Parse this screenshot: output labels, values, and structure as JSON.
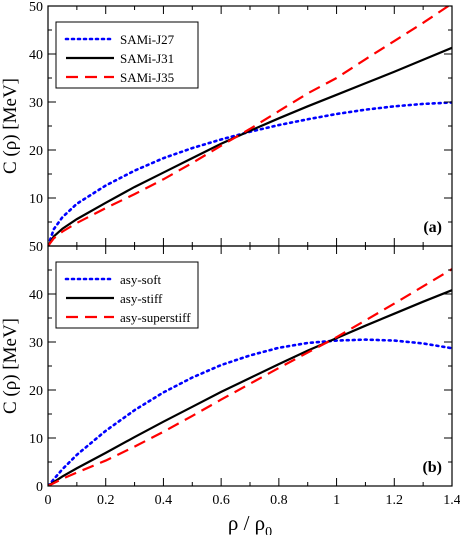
{
  "chart_data": [
    {
      "type": "line",
      "panel_label": "(a)",
      "ylabel": "C (ρ) [MeV]",
      "xlim": [
        0,
        1.4
      ],
      "ylim": [
        0,
        50
      ],
      "yticks": [
        "10",
        "20",
        "30",
        "40",
        "50"
      ],
      "grid": false,
      "legend_position": "top-left",
      "series": [
        {
          "name": "SAMi-J27",
          "color": "#0000ff",
          "style": "dotted",
          "x": [
            0,
            0.02,
            0.05,
            0.1,
            0.2,
            0.3,
            0.4,
            0.5,
            0.6,
            0.7,
            0.8,
            0.9,
            1.0,
            1.1,
            1.2,
            1.3,
            1.4
          ],
          "y": [
            0,
            3.5,
            6.0,
            8.8,
            12.6,
            15.7,
            18.3,
            20.4,
            22.2,
            23.8,
            25.2,
            26.4,
            27.5,
            28.4,
            29.1,
            29.6,
            29.9
          ]
        },
        {
          "name": "SAMi-J31",
          "color": "#000000",
          "style": "solid",
          "x": [
            0,
            0.02,
            0.05,
            0.1,
            0.2,
            0.3,
            0.4,
            0.5,
            0.6,
            0.7,
            0.8,
            0.9,
            1.0,
            1.1,
            1.2,
            1.3,
            1.4
          ],
          "y": [
            0,
            2.0,
            3.6,
            5.6,
            9.0,
            12.3,
            15.3,
            18.3,
            21.3,
            24.0,
            26.6,
            29.1,
            31.5,
            33.9,
            36.3,
            38.8,
            41.3
          ]
        },
        {
          "name": "SAMi-J35",
          "color": "#ff0000",
          "style": "dashed",
          "x": [
            0,
            0.02,
            0.05,
            0.1,
            0.2,
            0.3,
            0.4,
            0.5,
            0.6,
            0.7,
            0.8,
            0.9,
            1.0,
            1.1,
            1.2,
            1.3,
            1.4
          ],
          "y": [
            0,
            1.6,
            3.0,
            4.8,
            7.9,
            10.8,
            13.9,
            17.3,
            20.9,
            24.4,
            28.1,
            31.8,
            35.0,
            38.9,
            42.7,
            46.5,
            50.5
          ]
        }
      ]
    },
    {
      "type": "line",
      "panel_label": "(b)",
      "xlabel": "ρ / ρ",
      "xlabel_sub": "0",
      "ylabel": "C (ρ) [MeV]",
      "xlim": [
        0,
        1.4
      ],
      "ylim": [
        0,
        50
      ],
      "xticks": [
        "0",
        "0.2",
        "0.4",
        "0.6",
        "0.8",
        "1",
        "1.2",
        "1.4"
      ],
      "yticks": [
        "0",
        "10",
        "20",
        "30",
        "40",
        "50"
      ],
      "grid": false,
      "legend_position": "top-left",
      "series": [
        {
          "name": "asy-soft",
          "color": "#0000ff",
          "style": "dotted",
          "x": [
            0,
            0.05,
            0.1,
            0.2,
            0.3,
            0.4,
            0.5,
            0.6,
            0.7,
            0.8,
            0.9,
            1.0,
            1.1,
            1.2,
            1.3,
            1.4
          ],
          "y": [
            0,
            3.5,
            6.5,
            11.5,
            15.8,
            19.5,
            22.6,
            25.2,
            27.2,
            28.8,
            29.8,
            30.3,
            30.5,
            30.3,
            29.7,
            28.7
          ]
        },
        {
          "name": "asy-stiff",
          "color": "#000000",
          "style": "solid",
          "x": [
            0,
            0.05,
            0.1,
            0.2,
            0.3,
            0.4,
            0.5,
            0.6,
            0.7,
            0.8,
            0.9,
            1.0,
            1.1,
            1.2,
            1.3,
            1.4
          ],
          "y": [
            0,
            2.0,
            3.7,
            6.9,
            10.2,
            13.4,
            16.5,
            19.6,
            22.5,
            25.4,
            28.2,
            30.8,
            33.4,
            35.9,
            38.4,
            40.8
          ]
        },
        {
          "name": "asy-superstiff",
          "color": "#ff0000",
          "style": "dashed",
          "x": [
            0,
            0.05,
            0.1,
            0.2,
            0.3,
            0.4,
            0.5,
            0.6,
            0.7,
            0.8,
            0.9,
            1.0,
            1.1,
            1.2,
            1.3,
            1.4
          ],
          "y": [
            0,
            1.5,
            2.8,
            5.3,
            8.2,
            11.3,
            14.6,
            18.0,
            21.3,
            24.6,
            27.8,
            31.0,
            34.5,
            38.0,
            41.6,
            45.2
          ]
        }
      ]
    }
  ]
}
